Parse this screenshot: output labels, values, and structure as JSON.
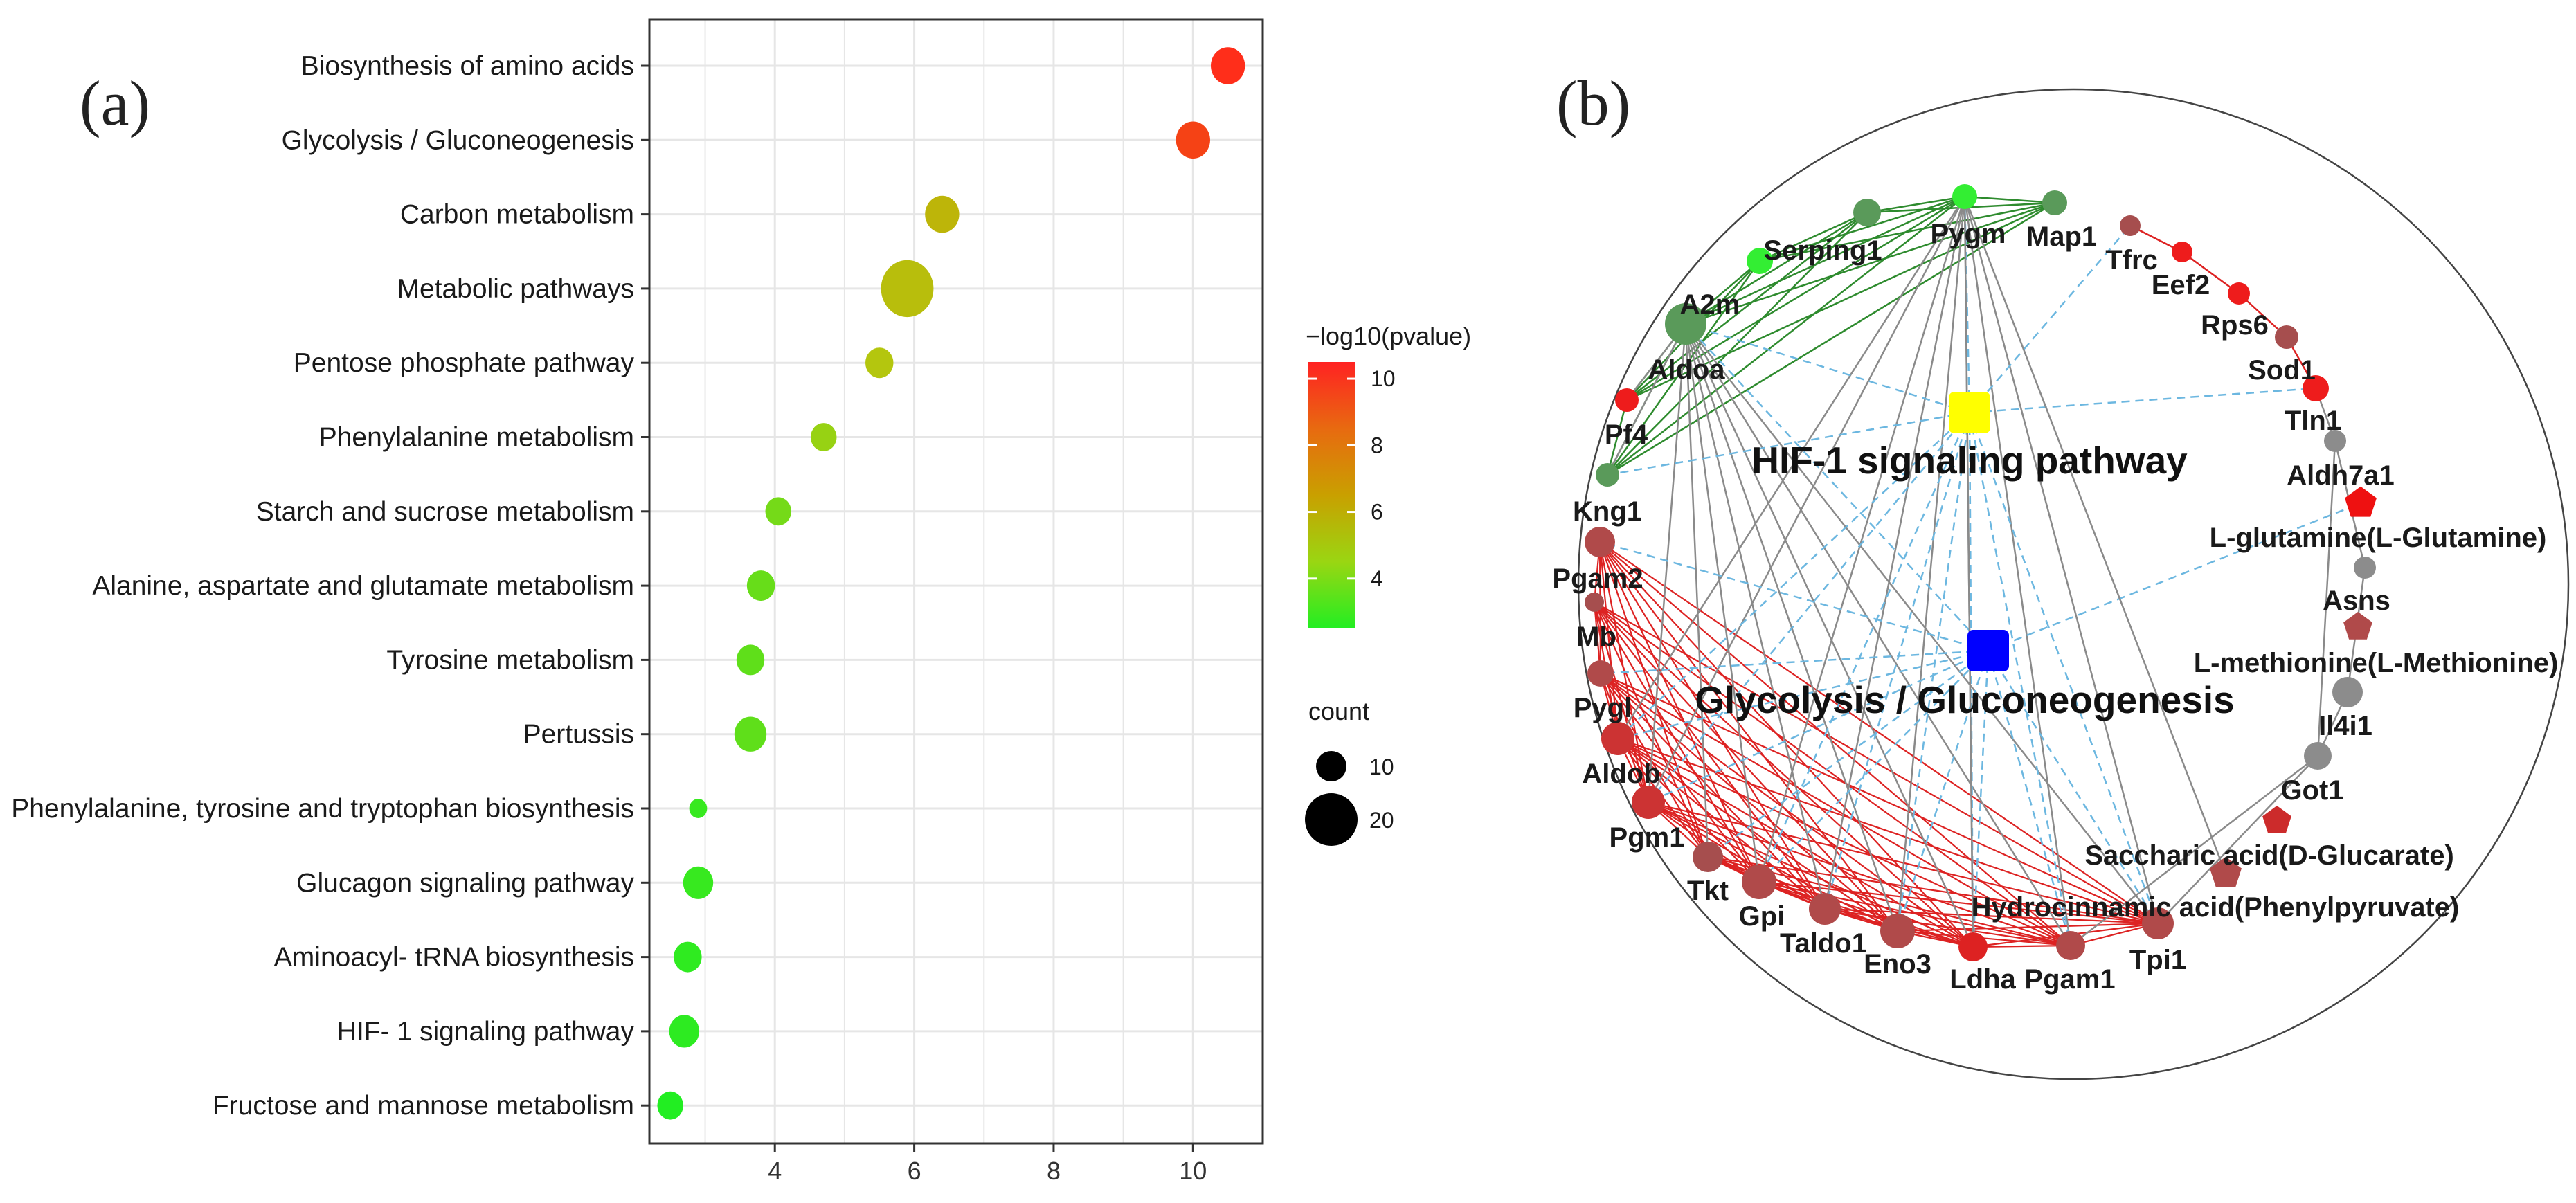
{
  "panels": {
    "a": "(a)",
    "b": "(b)"
  },
  "chart_data": [
    {
      "type": "scatter",
      "subtype": "bubble",
      "title": "",
      "xlabel": "",
      "ylabel": "",
      "xlim": [
        2.2,
        11.0
      ],
      "xticks": [
        4,
        6,
        8,
        10
      ],
      "grid": true,
      "categories": [
        "Biosynthesis of amino acids",
        "Glycolysis / Gluconeogenesis",
        "Carbon metabolism",
        "Metabolic pathways",
        "Pentose phosphate pathway",
        "Phenylalanine metabolism",
        "Starch and sucrose metabolism",
        "Alanine, aspartate and glutamate metabolism",
        "Tyrosine metabolism",
        "Pertussis",
        "Phenylalanine, tyrosine and tryptophan biosynthesis",
        "Glucagon signaling pathway",
        "Aminoacyl- tRNA biosynthesis",
        "HIF- 1 signaling pathway",
        "Fructose and mannose metabolism"
      ],
      "values": [
        10.5,
        10.0,
        6.4,
        5.9,
        5.5,
        4.7,
        4.05,
        3.8,
        3.65,
        3.65,
        2.9,
        2.9,
        2.75,
        2.7,
        2.5
      ],
      "color_values": [
        10.5,
        10.0,
        6.4,
        5.9,
        5.5,
        4.7,
        4.05,
        3.8,
        3.65,
        3.65,
        2.9,
        2.9,
        2.75,
        2.7,
        2.5
      ],
      "counts": [
        13,
        13,
        13,
        22,
        10,
        9,
        9,
        10,
        10,
        12,
        5,
        11,
        10,
        11,
        9
      ],
      "color_legend": {
        "title": "−log10(pvalue)",
        "ticks": [
          4,
          6,
          8,
          10
        ],
        "range": [
          2.5,
          10.5
        ],
        "colors": [
          "#22ee22",
          "#b0cc10",
          "#cc9a00",
          "#ff2e1a"
        ]
      },
      "size_legend": {
        "title": "count",
        "ticks": [
          10,
          20
        ]
      }
    },
    {
      "type": "network",
      "hubs": [
        {
          "id": "HIF-1 signaling pathway",
          "color": "#ffff00"
        },
        {
          "id": "Glycolysis / Gluconeogenesis",
          "color": "#0000ff"
        }
      ],
      "nodes": [
        {
          "id": "Pygm",
          "shape": "circle",
          "color": "#44dd44",
          "size": 1
        },
        {
          "id": "Map1",
          "shape": "circle",
          "color": "#5a9a5a",
          "size": 1
        },
        {
          "id": "Tfrc",
          "shape": "circle",
          "color": "#a64e4e",
          "size": 0.8
        },
        {
          "id": "Eef2",
          "shape": "circle",
          "color": "#ee1c1c",
          "size": 0.8
        },
        {
          "id": "Rps6",
          "shape": "circle",
          "color": "#ee1c1c",
          "size": 0.9
        },
        {
          "id": "Sod1",
          "shape": "circle",
          "color": "#a64e4e",
          "size": 0.9
        },
        {
          "id": "Tln1",
          "shape": "circle",
          "color": "#ee1c1c",
          "size": 1
        },
        {
          "id": "Aldh7a1",
          "shape": "circle",
          "color": "#8c8c8c",
          "size": 0.8
        },
        {
          "id": "L-glutamine(L-Glutamine)",
          "shape": "pentagon",
          "color": "#ee1111",
          "size": 1.1
        },
        {
          "id": "Asns",
          "shape": "circle",
          "color": "#8c8c8c",
          "size": 0.8
        },
        {
          "id": "L-methionine(L-Methionine)",
          "shape": "pentagon",
          "color": "#b04a4a",
          "size": 1
        },
        {
          "id": "Il4i1",
          "shape": "circle",
          "color": "#8c8c8c",
          "size": 1.2
        },
        {
          "id": "Got1",
          "shape": "circle",
          "color": "#8c8c8c",
          "size": 1.1
        },
        {
          "id": "Saccharic acid(D-Glucarate)",
          "shape": "pentagon",
          "color": "#cc2b2b",
          "size": 1
        },
        {
          "id": "Hydrocinnamic acid(Phenylpyruvate)",
          "shape": "pentagon",
          "color": "#b04a4a",
          "size": 1.1
        },
        {
          "id": "Tpi1",
          "shape": "circle",
          "color": "#b04a4a",
          "size": 1.3
        },
        {
          "id": "Pgam1",
          "shape": "circle",
          "color": "#b04a4a",
          "size": 1.2
        },
        {
          "id": "Ldha",
          "shape": "circle",
          "color": "#dd2222",
          "size": 1.2
        },
        {
          "id": "Eno3",
          "shape": "circle",
          "color": "#b04a4a",
          "size": 1.4
        },
        {
          "id": "Taldo1",
          "shape": "circle",
          "color": "#b04a4a",
          "size": 1.3
        },
        {
          "id": "Gpi",
          "shape": "circle",
          "color": "#b04a4a",
          "size": 1.4
        },
        {
          "id": "Tkt",
          "shape": "circle",
          "color": "#a64e4e",
          "size": 1.2
        },
        {
          "id": "Pgm1",
          "shape": "circle",
          "color": "#cc3333",
          "size": 1.3
        },
        {
          "id": "Aldob",
          "shape": "circle",
          "color": "#cc3333",
          "size": 1.4
        },
        {
          "id": "Pygl",
          "shape": "circle",
          "color": "#cc3333",
          "size": 1.4
        },
        {
          "id": "Mb",
          "shape": "circle",
          "color": "#b04a4a",
          "size": 1
        },
        {
          "id": "Pgam2",
          "shape": "circle",
          "color": "#a64e4e",
          "size": 0.7
        },
        {
          "id": "Kng1",
          "shape": "circle",
          "color": "#b04a4a",
          "size": 1.3
        },
        {
          "id": "Pf4",
          "shape": "circle",
          "color": "#5a9a5a",
          "size": 0.9
        },
        {
          "id": "Aldoa",
          "shape": "circle",
          "color": "#ee1c1c",
          "size": 0.9
        },
        {
          "id": "A2m",
          "shape": "circle",
          "color": "#5a9a5a",
          "size": 1.6
        },
        {
          "id": "Serping1",
          "shape": "circle",
          "color": "#33ee33",
          "size": 0.9
        },
        {
          "id": "__Serping1_node",
          "shape": "circle",
          "color": "#5a9a5a",
          "size": 1
        }
      ]
    }
  ]
}
